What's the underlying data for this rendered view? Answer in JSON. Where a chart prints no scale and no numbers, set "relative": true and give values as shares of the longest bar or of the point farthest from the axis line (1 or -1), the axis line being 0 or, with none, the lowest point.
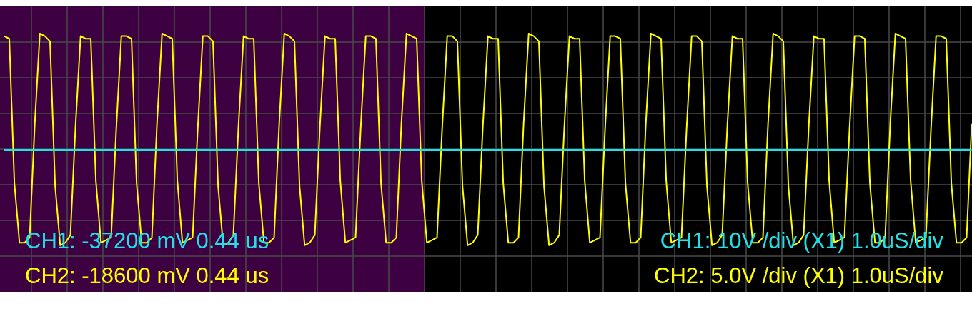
{
  "chart_data": {
    "type": "line",
    "relative": true,
    "grid": true,
    "categories": [
      null,
      null,
      null,
      null,
      null,
      null,
      null,
      null,
      null,
      null,
      null,
      null,
      null,
      null,
      null,
      null,
      null,
      null,
      null,
      null,
      null,
      null,
      null,
      null,
      null,
      null,
      null,
      null,
      null,
      null,
      null,
      null,
      null,
      null,
      null,
      null,
      null,
      null,
      null,
      null,
      null,
      null,
      null,
      null,
      null,
      null,
      null,
      null,
      null,
      null,
      null,
      null,
      null,
      null,
      null,
      null,
      null,
      null,
      null,
      null,
      null,
      null,
      null,
      null,
      null,
      null,
      null,
      null,
      null,
      null,
      null,
      null,
      null,
      null,
      null,
      null,
      null,
      null,
      null,
      null,
      null,
      null,
      null,
      null,
      null,
      null,
      null,
      null,
      null,
      null,
      null,
      null,
      null,
      null,
      null,
      null,
      null,
      null,
      null,
      null,
      null,
      null,
      null,
      null,
      null,
      null,
      null,
      null,
      null,
      null,
      null,
      null,
      null,
      null,
      null,
      null,
      null,
      null,
      null,
      null,
      null,
      null,
      null,
      null,
      null,
      null,
      null,
      null,
      null,
      null,
      null,
      null,
      null,
      null,
      null,
      null,
      null,
      null,
      null,
      null,
      null,
      null,
      null,
      null,
      null,
      null,
      null,
      null,
      null,
      null,
      null,
      null,
      null,
      null,
      null,
      null,
      null,
      null,
      null,
      null,
      null,
      null,
      null,
      null,
      null,
      null,
      null,
      null,
      null,
      null,
      null,
      null,
      null,
      null,
      null,
      null,
      null,
      null,
      null,
      null,
      null,
      null,
      null,
      null,
      null,
      null,
      null,
      null,
      null,
      null,
      null
    ],
    "series": [
      {
        "color": "#ffff00",
        "values": [
          0.99,
          0.98,
          0.42,
          0.19,
          0.19,
          0.21,
          0.65,
          1,
          0.99,
          0.97,
          0.41,
          0.18,
          0.19,
          0.22,
          0.64,
          0.99,
          0.98,
          0.98,
          0.43,
          0.19,
          0.2,
          0.21,
          0.63,
          0.99,
          0.99,
          0.98,
          0.42,
          0.19,
          0.19,
          0.21,
          0.65,
          1,
          0.99,
          0.98,
          0.43,
          0.19,
          0.2,
          0.21,
          0.63,
          0.99,
          0.99,
          0.97,
          0.41,
          0.18,
          0.19,
          0.22,
          0.64,
          0.99,
          0.98,
          0.98,
          0.42,
          0.19,
          0.19,
          0.21,
          0.65,
          1,
          0.99,
          0.97,
          0.41,
          0.18,
          0.19,
          0.22,
          0.64,
          0.99,
          0.98,
          0.98,
          0.43,
          0.19,
          0.2,
          0.21,
          0.63,
          0.99,
          0.99,
          0.98,
          0.42,
          0.19,
          0.19,
          0.21,
          0.65,
          1,
          0.99,
          0.98,
          0.43,
          0.19,
          0.2,
          0.21,
          0.63,
          0.99,
          0.99,
          0.97,
          0.41,
          0.18,
          0.19,
          0.22,
          0.64,
          0.99,
          0.98,
          0.98,
          0.42,
          0.19,
          0.19,
          0.21,
          0.65,
          1,
          0.99,
          0.97,
          0.41,
          0.18,
          0.19,
          0.22,
          0.64,
          0.99,
          0.98,
          0.98,
          0.43,
          0.19,
          0.2,
          0.21,
          0.63,
          0.99,
          0.99,
          0.98,
          0.42,
          0.19,
          0.19,
          0.21,
          0.65,
          1,
          0.99,
          0.98,
          0.43,
          0.19,
          0.2,
          0.21,
          0.63,
          0.99,
          0.99,
          0.97,
          0.41,
          0.18,
          0.19,
          0.22,
          0.64,
          0.99,
          0.98,
          0.98,
          0.42,
          0.19,
          0.19,
          0.21,
          0.65,
          1,
          0.99,
          0.97,
          0.41,
          0.18,
          0.19,
          0.22,
          0.64,
          0.99,
          0.98,
          0.98,
          0.43,
          0.19,
          0.2,
          0.21,
          0.63,
          0.99,
          0.99,
          0.98,
          0.42,
          0.19,
          0.19,
          0.21,
          0.65,
          1,
          0.99,
          0.98,
          0.43,
          0.19,
          0.2,
          0.21,
          0.63,
          0.99,
          0.99,
          0.98,
          0.42,
          0.19,
          0.19,
          0.21,
          0.65
        ]
      },
      {
        "color": "#22e0e8",
        "values": [
          0.55,
          0.55,
          0.55,
          0.55,
          0.55,
          0.55,
          0.55,
          0.55,
          0.55,
          0.55,
          0.55,
          0.55,
          0.55,
          0.55,
          0.55,
          0.55,
          0.55,
          0.55,
          0.55,
          0.55,
          0.55,
          0.55,
          0.55,
          0.55,
          0.55,
          0.55,
          0.55,
          0.55,
          0.55,
          0.55,
          0.55,
          0.55,
          0.55,
          0.55,
          0.55,
          0.55,
          0.55,
          0.55,
          0.55,
          0.55,
          0.55,
          0.55,
          0.55,
          0.55,
          0.55,
          0.55,
          0.55,
          0.55,
          0.55,
          0.55,
          0.55,
          0.55,
          0.55,
          0.55,
          0.55,
          0.55,
          0.55,
          0.55,
          0.55,
          0.55,
          0.55,
          0.55,
          0.55,
          0.55,
          0.55,
          0.55,
          0.55,
          0.55,
          0.55,
          0.55,
          0.55,
          0.55,
          0.55,
          0.55,
          0.55,
          0.55,
          0.55,
          0.55,
          0.55,
          0.55,
          0.55,
          0.55,
          0.55,
          0.55,
          0.55,
          0.55,
          0.55,
          0.55,
          0.55,
          0.55,
          0.55,
          0.55,
          0.55,
          0.55,
          0.55,
          0.55,
          0.55,
          0.55,
          0.55,
          0.55,
          0.55,
          0.55,
          0.55,
          0.55,
          0.55,
          0.55,
          0.55,
          0.55,
          0.55,
          0.55,
          0.55,
          0.55,
          0.55,
          0.55,
          0.55,
          0.55,
          0.55,
          0.55,
          0.55,
          0.55,
          0.55,
          0.55,
          0.55,
          0.55,
          0.55,
          0.55,
          0.55,
          0.55,
          0.55,
          0.55,
          0.55,
          0.55,
          0.55,
          0.55,
          0.55,
          0.55,
          0.55,
          0.55,
          0.55,
          0.55,
          0.55,
          0.55,
          0.55,
          0.55,
          0.55,
          0.55,
          0.55,
          0.55,
          0.55,
          0.55,
          0.55,
          0.55,
          0.55,
          0.55,
          0.55,
          0.55,
          0.55,
          0.55,
          0.55,
          0.55,
          0.55,
          0.55,
          0.55,
          0.55,
          0.55,
          0.55,
          0.55,
          0.55,
          0.55,
          0.55,
          0.55,
          0.55,
          0.55,
          0.55,
          0.55,
          0.55,
          0.55,
          0.55,
          0.55,
          0.55,
          0.55,
          0.55,
          0.55,
          0.55,
          0.55,
          0.55,
          0.55,
          0.55,
          0.55,
          0.55,
          0.55
        ]
      }
    ],
    "annotations": [
      "CH1: -37200 mV 0.44 us",
      "CH2: -18600 mV 0.44 us",
      "CH1: 10V /div (X1) 1.0uS/div",
      "CH2: 5.0V /div (X1) 1.0uS/div"
    ]
  }
}
